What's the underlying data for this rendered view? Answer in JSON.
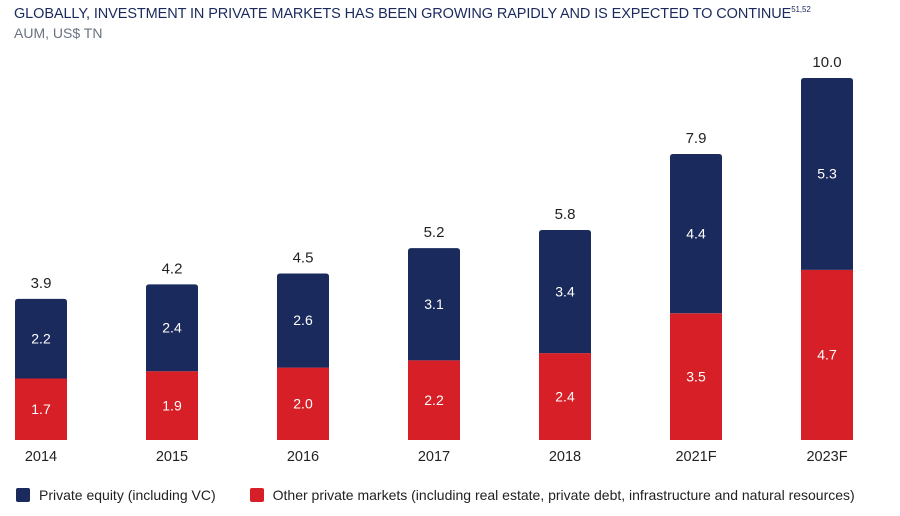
{
  "title": "GLOBALLY, INVESTMENT IN PRIVATE MARKETS HAS BEEN GROWING RAPIDLY AND IS EXPECTED TO CONTINUE",
  "title_sup": "51,52",
  "subtitle": "AUM, US$ TN",
  "colors": {
    "private_equity": "#1b2a5c",
    "other_private": "#d71f27"
  },
  "legend": {
    "private_equity": "Private equity (including VC)",
    "other_private": "Other private markets (including real estate, private debt, infrastructure and natural resources)"
  },
  "chart_data": {
    "type": "bar",
    "stacked": true,
    "categories": [
      "2014",
      "2015",
      "2016",
      "2017",
      "2018",
      "2021F",
      "2023F"
    ],
    "series": [
      {
        "name": "Other private markets (including real estate, private debt, infrastructure and natural resources)",
        "key": "other_private",
        "values": [
          1.7,
          1.9,
          2.0,
          2.2,
          2.4,
          3.5,
          4.7
        ],
        "labels": [
          "1.7",
          "1.9",
          "2.0",
          "2.2",
          "2.4",
          "3.5",
          "4.7"
        ]
      },
      {
        "name": "Private equity (including VC)",
        "key": "private_equity",
        "values": [
          2.2,
          2.4,
          2.6,
          3.1,
          3.4,
          4.4,
          5.3
        ],
        "labels": [
          "2.2",
          "2.4",
          "2.6",
          "3.1",
          "3.4",
          "4.4",
          "5.3"
        ]
      }
    ],
    "totals": [
      3.9,
      4.2,
      4.5,
      5.2,
      5.8,
      7.9,
      10.0
    ],
    "total_labels": [
      "3.9",
      "4.2",
      "4.5",
      "5.2",
      "5.8",
      "7.9",
      "10.0"
    ],
    "ylim": [
      0,
      10
    ],
    "ylabel": "AUM, US$ TN",
    "grid": false
  }
}
